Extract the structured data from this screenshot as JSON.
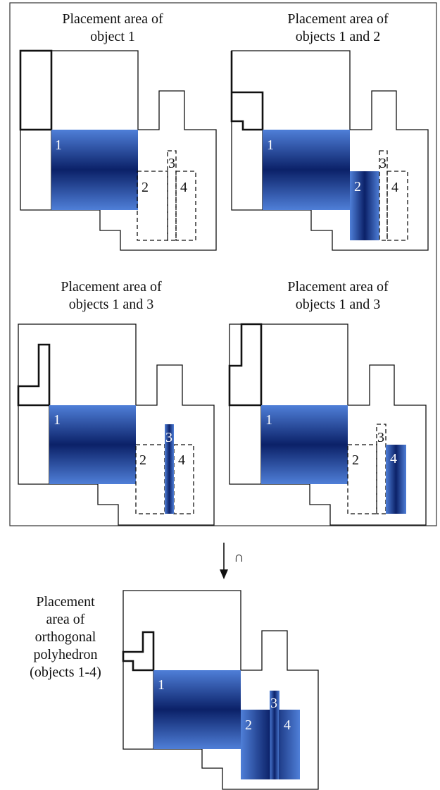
{
  "panels": [
    {
      "title_line1": "Placement area of",
      "title_line2": "object 1"
    },
    {
      "title_line1": "Placement area of",
      "title_line2": "objects 1 and 2"
    },
    {
      "title_line1": "Placement area of",
      "title_line2": "objects 1 and 3"
    },
    {
      "title_line1": "Placement area of",
      "title_line2": "objects 1 and 3"
    }
  ],
  "labels": {
    "o1": "1",
    "o2": "2",
    "o3": "3",
    "o4": "4"
  },
  "intersection_symbol": "∩",
  "result": {
    "lines": [
      "Placement",
      "area of",
      "orthogonal",
      "polyhedron",
      "(objects 1-4)"
    ]
  },
  "colors": {
    "placement_green": "#8cd04e",
    "object_blue_light": "#4f7fd8",
    "object_blue_dark": "#0b2168"
  }
}
